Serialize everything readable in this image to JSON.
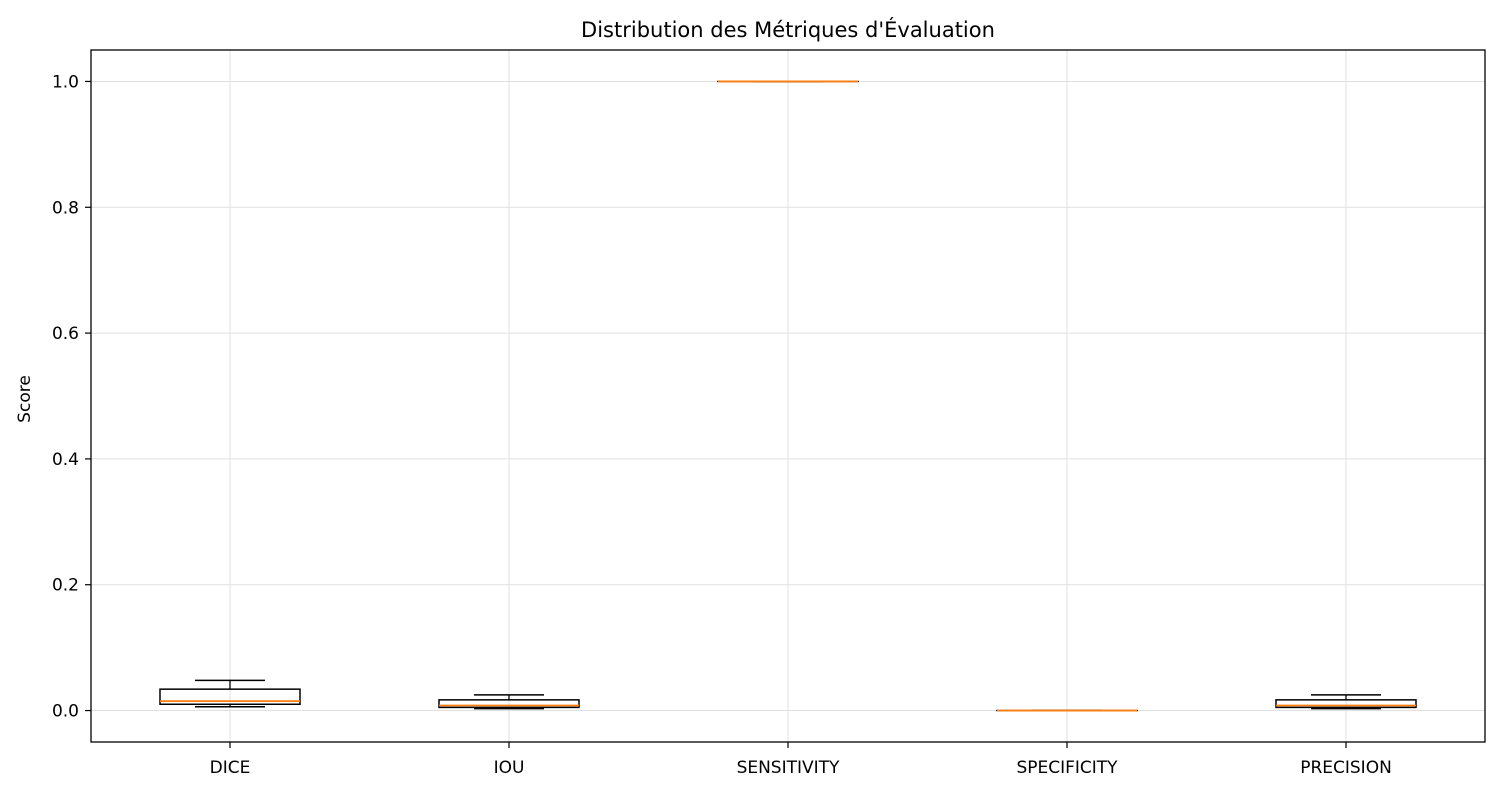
{
  "chart_data": {
    "type": "box",
    "title": "Distribution des Métriques d'Évaluation",
    "xlabel": "",
    "ylabel": "Score",
    "ylim": [
      -0.05,
      1.05
    ],
    "yticks": [
      0.0,
      0.2,
      0.4,
      0.6,
      0.8,
      1.0
    ],
    "ytick_labels": [
      "0.0",
      "0.2",
      "0.4",
      "0.6",
      "0.8",
      "1.0"
    ],
    "grid": true,
    "colors": {
      "box": "#000000",
      "median": "#ff7f0e",
      "grid": "#e0e0e0"
    },
    "categories": [
      "DICE",
      "IOU",
      "SENSITIVITY",
      "SPECIFICITY",
      "PRECISION"
    ],
    "boxes": [
      {
        "name": "DICE",
        "whisker_low": 0.006,
        "q1": 0.01,
        "median": 0.015,
        "q3": 0.034,
        "whisker_high": 0.048
      },
      {
        "name": "IOU",
        "whisker_low": 0.003,
        "q1": 0.005,
        "median": 0.008,
        "q3": 0.017,
        "whisker_high": 0.025
      },
      {
        "name": "SENSITIVITY",
        "whisker_low": 1.0,
        "q1": 1.0,
        "median": 1.0,
        "q3": 1.0,
        "whisker_high": 1.0
      },
      {
        "name": "SPECIFICITY",
        "whisker_low": 0.0,
        "q1": 0.0,
        "median": 0.0,
        "q3": 0.0,
        "whisker_high": 0.0
      },
      {
        "name": "PRECISION",
        "whisker_low": 0.003,
        "q1": 0.005,
        "median": 0.008,
        "q3": 0.017,
        "whisker_high": 0.025
      }
    ]
  }
}
